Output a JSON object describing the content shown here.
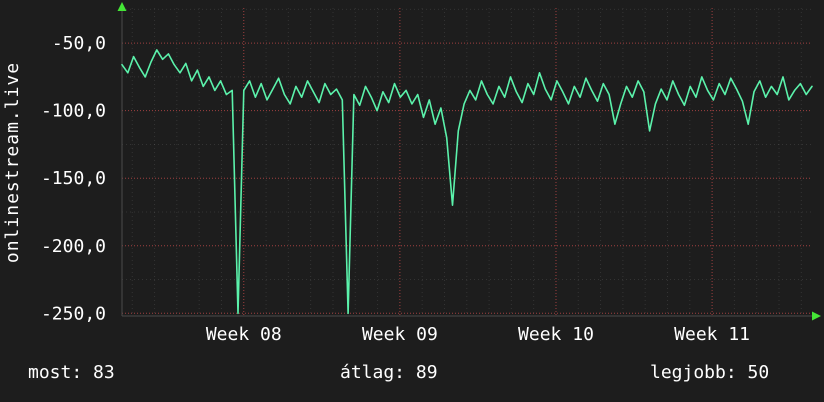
{
  "panel": {
    "left_label": "onlinestream.live"
  },
  "footer": {
    "most": "most: 83",
    "average": "átlag: 89",
    "best": "legjobb: 50"
  },
  "colors": {
    "background": "#1d1d1d",
    "text": "#ffffff",
    "line": "#5bf2ab",
    "grid_major": "#a04040",
    "grid_minor": "rgba(255,255,255,0.10)",
    "axis": "#4a4a4a",
    "arrow": "#44e636"
  },
  "chart_data": {
    "type": "line",
    "title": "",
    "ylabel": "onlinestream.live",
    "xlabel": "",
    "grid": true,
    "legend_position": "none",
    "xlim": [
      7.22,
      11.64
    ],
    "ylim": [
      -252,
      -24
    ],
    "x_ticks": [
      8,
      9,
      10,
      11
    ],
    "x_tick_labels": [
      "Week 08",
      "Week 09",
      "Week 10",
      "Week 11"
    ],
    "y_ticks": [
      -50,
      -100,
      -150,
      -200,
      -250
    ],
    "y_tick_labels": [
      "-50,0",
      "-100,0",
      "-150,0",
      "-200,0",
      "-250,0"
    ],
    "stats": {
      "most": 83,
      "átlag": 89,
      "legjobb": 50
    },
    "series": [
      {
        "name": "onlinestream.live",
        "color": "#5bf2ab",
        "values": [
          -66,
          -72,
          -60,
          -68,
          -75,
          -64,
          -55,
          -62,
          -58,
          -66,
          -72,
          -65,
          -78,
          -70,
          -82,
          -75,
          -85,
          -78,
          -88,
          -85,
          -250,
          -85,
          -78,
          -90,
          -80,
          -92,
          -84,
          -76,
          -88,
          -95,
          -82,
          -90,
          -78,
          -86,
          -94,
          -80,
          -88,
          -84,
          -92,
          -250,
          -88,
          -96,
          -82,
          -90,
          -100,
          -86,
          -94,
          -80,
          -90,
          -85,
          -95,
          -88,
          -105,
          -92,
          -110,
          -98,
          -120,
          -170,
          -115,
          -95,
          -85,
          -92,
          -78,
          -88,
          -95,
          -82,
          -90,
          -75,
          -86,
          -94,
          -80,
          -88,
          -72,
          -84,
          -92,
          -78,
          -86,
          -95,
          -82,
          -90,
          -76,
          -85,
          -93,
          -80,
          -88,
          -110,
          -95,
          -82,
          -90,
          -78,
          -86,
          -115,
          -95,
          -84,
          -92,
          -78,
          -88,
          -96,
          -82,
          -90,
          -75,
          -85,
          -92,
          -80,
          -88,
          -76,
          -84,
          -93,
          -110,
          -86,
          -78,
          -90,
          -82,
          -88,
          -75,
          -92,
          -85,
          -80,
          -88,
          -82
        ]
      }
    ]
  }
}
